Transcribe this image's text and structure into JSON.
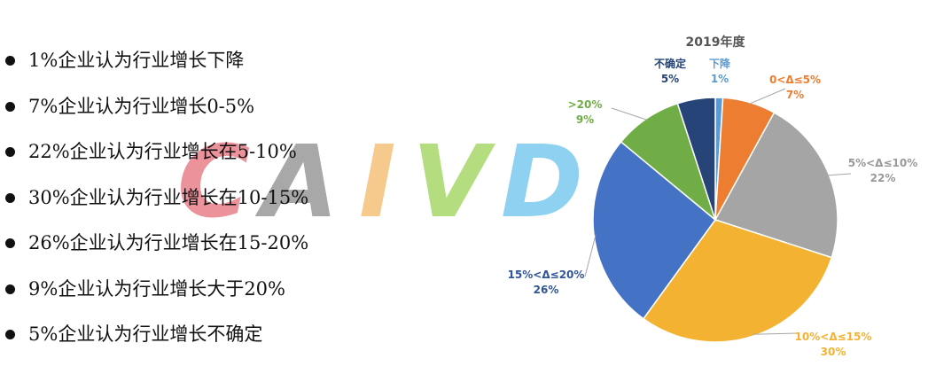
{
  "bullets": [
    "1%企业认为行业增长下降",
    "7%企业认为行业增长0-5%",
    "22%企业认为行业增长在5-10%",
    "30%企业认为行业增长在10-15%",
    "26%企业认为行业增长在15-20%",
    "9%企业认为行业增长大于20%",
    "5%企业认为行业增长不确定"
  ],
  "watermark": [
    {
      "char": "C",
      "color": "#e8808a"
    },
    {
      "char": "A",
      "color": "#9a9a9a"
    },
    {
      "char": "I",
      "color": "#f5c07a"
    },
    {
      "char": "V",
      "color": "#a8d86a"
    },
    {
      "char": "D",
      "color": "#7cc9ef"
    }
  ],
  "chart_data": {
    "type": "pie",
    "title": "2019年度",
    "slices": [
      {
        "label": "下降",
        "value": 1,
        "value_label": "1%",
        "color": "#5b9bd5"
      },
      {
        "label": "0<Δ≤5%",
        "value": 7,
        "value_label": "7%",
        "color": "#ed7d31"
      },
      {
        "label": "5%<Δ≤10%",
        "value": 22,
        "value_label": "22%",
        "color": "#a5a5a5"
      },
      {
        "label": "10%<Δ≤15%",
        "value": 30,
        "value_label": "30%",
        "color": "#f4b233"
      },
      {
        "label": "15%<Δ≤20%",
        "value": 26,
        "value_label": "26%",
        "color": "#4472c4"
      },
      {
        "label": ">20%",
        "value": 9,
        "value_label": "9%",
        "color": "#70ad47"
      },
      {
        "label": "不确定",
        "value": 5,
        "value_label": "5%",
        "color": "#264478"
      }
    ],
    "label_colors": [
      "#5b9bd5",
      "#ed7d31",
      "#999999",
      "#f4b233",
      "#2f5597",
      "#70ad47",
      "#264478"
    ]
  }
}
